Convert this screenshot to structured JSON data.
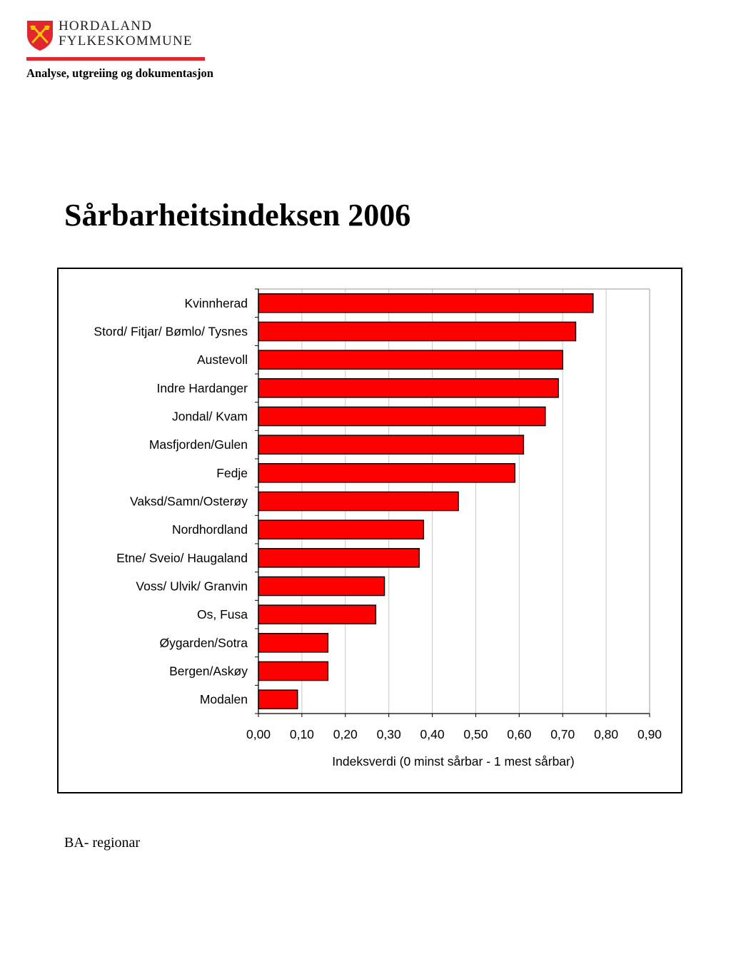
{
  "header": {
    "org_line1": "HORDALAND",
    "org_line2": "FYLKESKOMMUNE",
    "department": "Analyse, utgreiing og dokumentasjon",
    "logo_icon": "coat-of-arms-icon",
    "brand_color": "#e2262f"
  },
  "page": {
    "title": "Sårbarheitsindeksen 2006",
    "footer_note": "BA- regionar"
  },
  "chart_data": {
    "type": "bar",
    "orientation": "horizontal",
    "categories": [
      "Kvinnherad",
      "Stord/ Fitjar/ Bømlo/ Tysnes",
      "Austevoll",
      "Indre Hardanger",
      "Jondal/ Kvam",
      "Masfjorden/Gulen",
      "Fedje",
      "Vaksd/Samn/Osterøy",
      "Nordhordland",
      "Etne/ Sveio/ Haugaland",
      "Voss/ Ulvik/ Granvin",
      "Os, Fusa",
      "Øygarden/Sotra",
      "Bergen/Askøy",
      "Modalen"
    ],
    "values": [
      0.77,
      0.73,
      0.7,
      0.69,
      0.66,
      0.61,
      0.59,
      0.46,
      0.38,
      0.37,
      0.29,
      0.27,
      0.16,
      0.16,
      0.09
    ],
    "xlabel": "Indeksverdi  (0 minst sårbar - 1 mest sårbar)",
    "ylabel": "",
    "xlim": [
      0,
      0.9
    ],
    "xticks": [
      "0,00",
      "0,10",
      "0,20",
      "0,30",
      "0,40",
      "0,50",
      "0,60",
      "0,70",
      "0,80",
      "0,90"
    ],
    "grid": "vertical",
    "bar_color": "#ff0000",
    "bar_edge_color": "#000000",
    "grid_color": "#c8c8c8"
  }
}
